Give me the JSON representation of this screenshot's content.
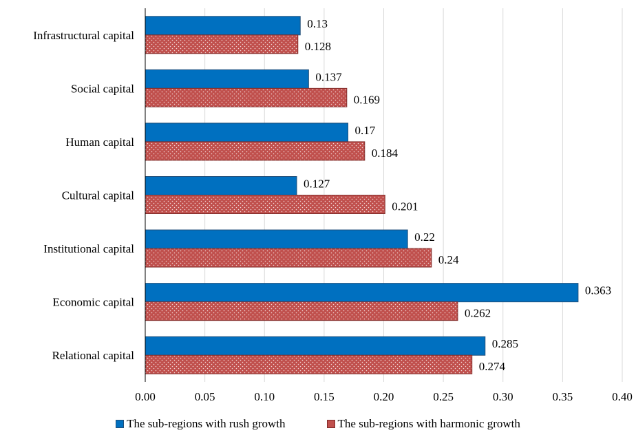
{
  "chart_data": {
    "type": "bar",
    "orientation": "horizontal",
    "categories": [
      "Infrastructural capital",
      "Social capital",
      "Human capital",
      "Cultural capital",
      "Institutional capital",
      "Economic capital",
      "Relational capital"
    ],
    "series": [
      {
        "name": "The sub-regions with rush growth",
        "values": [
          0.13,
          0.137,
          0.17,
          0.127,
          0.22,
          0.363,
          0.285
        ],
        "labels": [
          "0.13",
          "0.137",
          "0.17",
          "0.127",
          "0.22",
          "0.363",
          "0.285"
        ],
        "color": "#0070C0"
      },
      {
        "name": "The sub-regions with harmonic growth",
        "values": [
          0.128,
          0.169,
          0.184,
          0.201,
          0.24,
          0.262,
          0.274
        ],
        "labels": [
          "0.128",
          "0.169",
          "0.184",
          "0.201",
          "0.24",
          "0.262",
          "0.274"
        ],
        "color": "#C0504D"
      }
    ],
    "xlim": [
      0,
      0.4
    ],
    "xticks": [
      "0.00",
      "0.05",
      "0.10",
      "0.15",
      "0.20",
      "0.25",
      "0.30",
      "0.35",
      "0.40"
    ],
    "grid": "vertical",
    "legend_position": "bottom"
  }
}
